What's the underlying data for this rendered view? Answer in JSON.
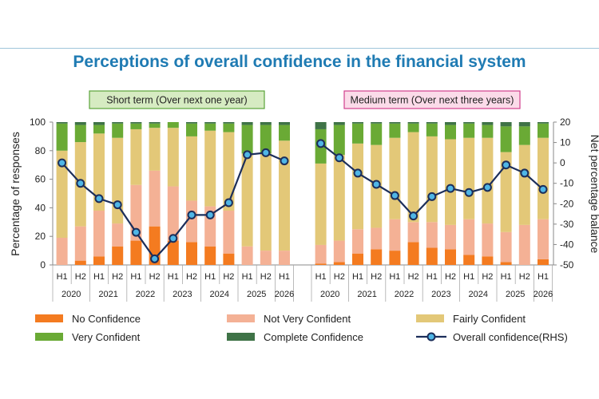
{
  "title": "Perceptions of overall confidence in the financial system",
  "colors": {
    "no": "#f47b20",
    "not_very": "#f4b195",
    "fairly": "#e3c878",
    "very": "#6aaa35",
    "complete": "#3f7347",
    "line": "#1c2e5a",
    "marker": "#4fb6e6",
    "short_box": "#d6ebc2",
    "short_border": "#5aa33a",
    "medium_box": "#fbdbe9",
    "medium_border": "#d1408e",
    "title": "#1f7bb3"
  },
  "chart_data": {
    "type": "stacked-bar-with-line",
    "y_left": {
      "label": "Percentage of responses",
      "range": [
        0,
        100
      ],
      "ticks": [
        0,
        20,
        40,
        60,
        80,
        100
      ]
    },
    "y_right": {
      "label": "Net percentage balance",
      "range": [
        -50,
        20
      ],
      "ticks": [
        20,
        10,
        0,
        -10,
        -20,
        -30,
        -40,
        -50
      ]
    },
    "panels": [
      {
        "name": "Short term (Over next one year)",
        "halves": [
          "H1",
          "H2",
          "H1",
          "H2",
          "H1",
          "H2",
          "H1",
          "H2",
          "H1",
          "H2",
          "H1",
          "H2",
          "H1"
        ],
        "years": [
          "2020",
          "2021",
          "2022",
          "2023",
          "2024",
          "2025",
          "2026"
        ],
        "series": {
          "No Confidence": [
            0,
            3,
            6,
            13,
            17,
            27,
            17,
            16,
            13,
            8,
            0,
            0,
            0
          ],
          "Not Very Confident": [
            19,
            24,
            32,
            16,
            39,
            39,
            38,
            29,
            28,
            30,
            13,
            10,
            10
          ],
          "Fairly Confident": [
            61,
            59,
            54,
            60,
            39,
            30,
            41,
            45,
            53,
            55,
            65,
            68,
            77
          ],
          "Very Confident": [
            19,
            12,
            6,
            10,
            4,
            3,
            4,
            9,
            5,
            6,
            20,
            20,
            11
          ],
          "Complete Confidence": [
            1,
            2,
            2,
            1,
            1,
            1,
            0,
            1,
            1,
            1,
            2,
            2,
            2
          ]
        },
        "overall_rhs": [
          0,
          -10,
          -17.5,
          -20.5,
          -34,
          -47,
          -37,
          -25.5,
          -25.5,
          -19.5,
          4,
          5,
          1
        ]
      },
      {
        "name": "Medium term (Over next three years)",
        "halves": [
          "H1",
          "H2",
          "H1",
          "H2",
          "H1",
          "H2",
          "H1",
          "H2",
          "H1",
          "H2",
          "H1",
          "H2",
          "H1"
        ],
        "years": [
          "2020",
          "2021",
          "2022",
          "2023",
          "2024",
          "2025",
          "2026"
        ],
        "series": {
          "No Confidence": [
            1,
            2,
            8,
            11,
            10,
            16,
            12,
            11,
            7,
            6,
            2,
            0,
            4
          ],
          "Not Very Confident": [
            13,
            15,
            17,
            15,
            22,
            14,
            18,
            17,
            25,
            23,
            21,
            28,
            28
          ],
          "Fairly Confident": [
            57,
            60,
            60,
            58,
            57,
            63,
            60,
            60,
            57,
            60,
            56,
            56,
            57
          ],
          "Very Confident": [
            24,
            21,
            14,
            15,
            10,
            6,
            9,
            10,
            10,
            9,
            18,
            13,
            10
          ],
          "Complete Confidence": [
            5,
            2,
            1,
            1,
            1,
            1,
            1,
            2,
            1,
            2,
            3,
            3,
            1
          ]
        },
        "overall_rhs": [
          9.5,
          2.5,
          -5,
          -10.5,
          -16,
          -26,
          -16.5,
          -12.5,
          -14.5,
          -12,
          -1,
          -5,
          -13
        ]
      }
    ],
    "legend": [
      "No Confidence",
      "Not Very Confident",
      "Fairly Confident",
      "Very Confident",
      "Complete Confidence",
      "Overall confidence(RHS)"
    ]
  }
}
